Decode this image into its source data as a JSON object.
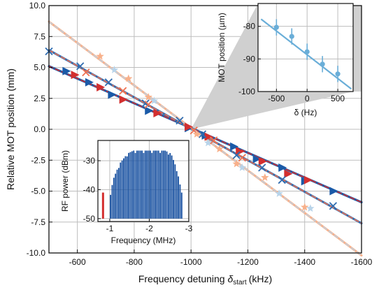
{
  "chart_data": [
    {
      "id": "main",
      "type": "line",
      "xlabel": "Frequency detuning",
      "xlabel_sub": "start",
      "xunit": "(kHz)",
      "ylabel": "Relative MOT position (mm)",
      "xlim": [
        -500,
        -1600
      ],
      "ylim": [
        -10,
        10
      ],
      "xticks": [
        -600,
        -800,
        -1000,
        -1200,
        -1400,
        -1600
      ],
      "xtick_labels": [
        "-600",
        "-800",
        "-1000",
        "-1200",
        "-1400",
        "-1600"
      ],
      "yticks": [
        10,
        7.5,
        5,
        2.5,
        0,
        -2.5,
        -5,
        -7.5,
        -10
      ],
      "ytick_labels": [
        "10.0",
        "7.5",
        "5.0",
        "2.5",
        "0.0",
        "-2.5",
        "-5.0",
        "-7.5",
        "-10.0"
      ],
      "grid": true,
      "series": [
        {
          "marker": "triangle-right",
          "color": "#1a5aa8",
          "fit_line": [
            [
              -500,
              5.1
            ],
            [
              -1600,
              -5.9
            ]
          ],
          "x": [
            -560,
            -640,
            -720,
            -850,
            -990,
            -1050,
            -1150,
            -1230,
            -1320,
            -1400,
            -1500
          ],
          "y": [
            4.7,
            3.8,
            2.8,
            1.5,
            0.1,
            -0.5,
            -1.4,
            -2.4,
            -3.1,
            -4.2,
            -5.0
          ]
        },
        {
          "marker": "triangle-right",
          "color": "#d32f2f",
          "fit_line": [
            [
              -500,
              5.1
            ],
            [
              -1600,
              -5.9
            ]
          ],
          "x": [
            -590,
            -680,
            -760,
            -880,
            -990,
            -1060,
            -1170,
            -1250,
            -1340,
            -1410
          ],
          "y": [
            4.4,
            3.4,
            2.4,
            1.3,
            0.2,
            -0.6,
            -1.8,
            -2.6,
            -3.6,
            -4.1
          ]
        },
        {
          "marker": "x",
          "color": "#2f6cb0",
          "fit_line": [
            [
              -500,
              6.4
            ],
            [
              -1600,
              -7.6
            ]
          ],
          "x": [
            -500,
            -610,
            -710,
            -840,
            -960,
            -1040,
            -1160,
            -1250,
            -1320,
            -1500
          ],
          "y": [
            6.3,
            5.1,
            3.8,
            2.1,
            0.7,
            -0.4,
            -2.1,
            -3.1,
            -4.1,
            -6.2
          ]
        },
        {
          "marker": "x",
          "color": "#f07050",
          "fit_line": [
            [
              -500,
              6.4
            ],
            [
              -1600,
              -7.6
            ]
          ],
          "x": [
            -630,
            -760,
            -850,
            -1010,
            -1080,
            -1180
          ],
          "y": [
            4.6,
            3.1,
            2.0,
            -0.1,
            -0.9,
            -2.3
          ]
        },
        {
          "marker": "star",
          "color": "#f8b08a",
          "fit_line": [
            [
              -500,
              8.7
            ],
            [
              -1600,
              -10.2
            ]
          ],
          "x": [
            -680,
            -780,
            -850,
            -1020,
            -1100,
            -1160,
            -1260,
            -1400
          ],
          "y": [
            5.9,
            4.1,
            2.6,
            -0.4,
            -1.6,
            -2.8,
            -3.9,
            -6.3
          ]
        },
        {
          "marker": "star",
          "color": "#b8d4ea",
          "fit_line": [
            [
              -500,
              8.7
            ],
            [
              -1600,
              -10.2
            ]
          ],
          "x": [
            -730,
            -870,
            -1060,
            -1180,
            -1310,
            -1420
          ],
          "y": [
            4.8,
            2.3,
            -1.1,
            -3.1,
            -5.2,
            -6.4
          ]
        }
      ]
    },
    {
      "id": "inset-rf",
      "type": "bar",
      "xlabel": "Frequency (MHz)",
      "ylabel": "RF power (dBm)",
      "xlim": [
        -0.7,
        -3
      ],
      "ylim": [
        -51,
        -23
      ],
      "xticks": [
        -1,
        -2,
        -3
      ],
      "xtick_labels": [
        "-1",
        "-2",
        "-3"
      ],
      "yticks": [
        -30,
        -40,
        -50
      ],
      "ytick_labels": [
        "-30",
        "-40",
        "-50"
      ],
      "color": "#1750a0",
      "reference_bar": {
        "x": -0.83,
        "top": -41,
        "color": "#d32f2f"
      },
      "spectrum": {
        "x_start": -1.02,
        "x_end": -2.82,
        "count": 44,
        "floor": -50
      },
      "envelope_x": [
        -1.02,
        -1.1,
        -1.25,
        -1.45,
        -1.6,
        -2.0,
        -2.4,
        -2.55,
        -2.7,
        -2.82
      ],
      "envelope_y": [
        -41,
        -36,
        -31,
        -27.5,
        -26.5,
        -26.5,
        -26.5,
        -27.5,
        -33,
        -41
      ]
    },
    {
      "id": "inset-mot",
      "type": "line",
      "xlabel": "δ (Hz)",
      "ylabel": "MOT position (µm)",
      "xlim": [
        -800,
        750
      ],
      "ylim": [
        -100,
        -73
      ],
      "xticks": [
        -500,
        0,
        500
      ],
      "xtick_labels": [
        "-500",
        "0",
        "500"
      ],
      "yticks": [
        -80,
        -90,
        -100
      ],
      "ytick_labels": [
        "-80",
        "-90",
        "-100"
      ],
      "color": "#6aaed8",
      "fit_line": [
        [
          -750,
          -77.8
        ],
        [
          720,
          -99.2
        ]
      ],
      "x": [
        -500,
        -250,
        0,
        250,
        500
      ],
      "y": [
        -80.3,
        -83.1,
        -87.8,
        -91.6,
        -94.6
      ],
      "yerr": [
        2.5,
        2.5,
        2.5,
        2.5,
        2.5
      ]
    }
  ]
}
